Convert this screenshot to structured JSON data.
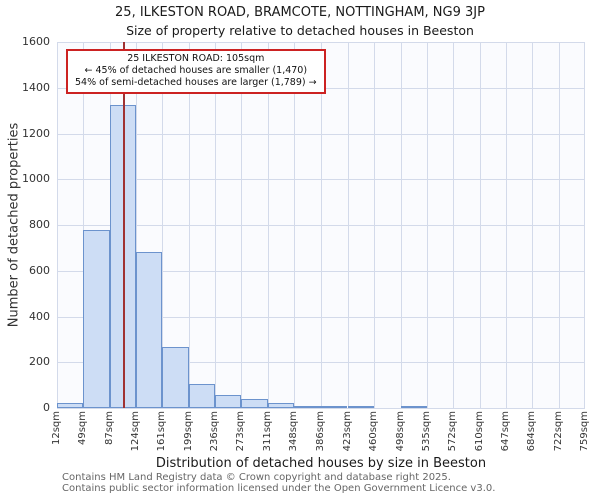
{
  "title": "25, ILKESTON ROAD, BRAMCOTE, NOTTINGHAM, NG9 3JP",
  "subtitle": "Size of property relative to detached houses in Beeston",
  "annotation": {
    "line1": "25 ILKESTON ROAD: 105sqm",
    "line2": "← 45% of detached houses are smaller (1,470)",
    "line3": "54% of semi-detached houses are larger (1,789) →"
  },
  "footer": {
    "line1": "Contains HM Land Registry data © Crown copyright and database right 2025.",
    "line2": "Contains public sector information licensed under the Open Government Licence v3.0."
  },
  "chart_data": {
    "type": "bar",
    "title": "25, ILKESTON ROAD, BRAMCOTE, NOTTINGHAM, NG9 3JP — Size of property relative to detached houses in Beeston",
    "xlabel": "Distribution of detached houses by size in Beeston",
    "ylabel": "Number of detached properties",
    "x_edges_sqm": [
      12,
      49,
      87,
      124,
      161,
      199,
      236,
      273,
      311,
      348,
      386,
      423,
      460,
      498,
      535,
      572,
      610,
      647,
      684,
      722,
      759
    ],
    "x_tick_labels": [
      "12sqm",
      "49sqm",
      "87sqm",
      "124sqm",
      "161sqm",
      "199sqm",
      "236sqm",
      "273sqm",
      "311sqm",
      "348sqm",
      "386sqm",
      "423sqm",
      "460sqm",
      "498sqm",
      "535sqm",
      "572sqm",
      "610sqm",
      "647sqm",
      "684sqm",
      "722sqm",
      "759sqm"
    ],
    "values": [
      20,
      780,
      1325,
      680,
      265,
      105,
      55,
      38,
      20,
      10,
      6,
      4,
      0,
      5,
      0,
      0,
      0,
      0,
      0,
      0
    ],
    "ylim": [
      0,
      1600
    ],
    "yticks": [
      0,
      200,
      400,
      600,
      800,
      1000,
      1200,
      1400,
      1600
    ],
    "grid": true,
    "marker": {
      "label": "25 ILKESTON ROAD",
      "value_sqm": 105
    },
    "colors": {
      "bar_fill": "#cdddf5",
      "bar_edge": "#6c93cd",
      "marker_line": "#a03232",
      "grid": "#d3daea",
      "annotation_border": "#cc2222"
    }
  }
}
